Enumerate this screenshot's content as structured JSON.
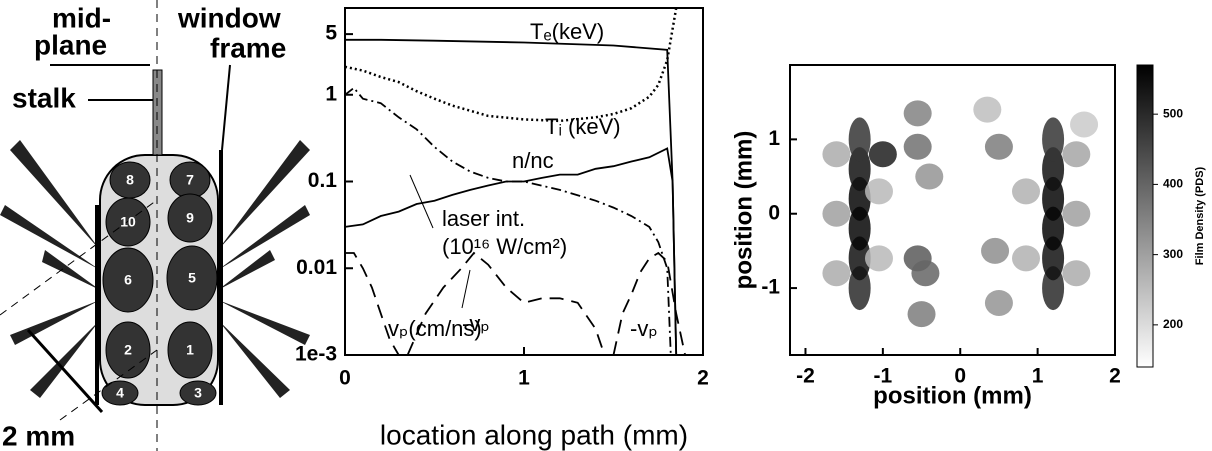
{
  "diagram": {
    "labels": [
      "mid-",
      "plane",
      "window",
      "frame",
      "stalk",
      "2 mm"
    ],
    "beam_numbers": [
      "8",
      "7",
      "10",
      "9",
      "6",
      "5",
      "2",
      "1",
      "4",
      "3"
    ]
  },
  "chart_data": [
    {
      "type": "line",
      "xlabel": "location along path (mm)",
      "xlim": [
        0,
        2
      ],
      "xticks": [
        0,
        1,
        2
      ],
      "ylim": [
        0.001,
        10
      ],
      "log_y": true,
      "yticks": [
        5,
        1,
        0.1,
        0.01,
        {
          "value": 0.001,
          "label": "1e-3"
        }
      ],
      "annotations": [
        "(10¹⁶ W/cm²)"
      ],
      "series": [
        {
          "name": "Tₑ(keV)",
          "color": "#000000",
          "dash": "solid",
          "x": [
            0,
            0.2,
            0.5,
            1.0,
            1.5,
            1.8,
            1.83,
            1.85
          ],
          "values": [
            4.3,
            4.3,
            4.2,
            4.0,
            3.7,
            3.3,
            0.1,
            0.001
          ]
        },
        {
          "name": "Tᵢ (keV)",
          "color": "#000000",
          "dash": "dotted",
          "x": [
            0,
            0.1,
            0.2,
            0.3,
            0.4,
            0.5,
            0.6,
            0.8,
            1.0,
            1.2,
            1.4,
            1.5,
            1.6,
            1.7,
            1.75,
            1.8,
            1.85
          ],
          "values": [
            2.1,
            1.9,
            1.6,
            1.4,
            1.1,
            0.9,
            0.75,
            0.57,
            0.52,
            0.5,
            0.55,
            0.6,
            0.7,
            0.95,
            1.3,
            2.5,
            10
          ]
        },
        {
          "name": "n/nc",
          "color": "#000000",
          "dash": "solid",
          "x": [
            0,
            0.1,
            0.2,
            0.3,
            0.4,
            0.5,
            0.6,
            0.7,
            0.8,
            0.9,
            1.0,
            1.1,
            1.2,
            1.3,
            1.4,
            1.5,
            1.6,
            1.7,
            1.8,
            1.83,
            1.85
          ],
          "values": [
            0.03,
            0.032,
            0.04,
            0.045,
            0.055,
            0.06,
            0.07,
            0.08,
            0.09,
            0.1,
            0.1,
            0.11,
            0.12,
            0.12,
            0.14,
            0.15,
            0.17,
            0.19,
            0.24,
            0.1,
            0.001
          ]
        },
        {
          "name": "laser int.",
          "color": "#000000",
          "dash": "dashdot",
          "x": [
            0,
            0.05,
            0.1,
            0.2,
            0.3,
            0.4,
            0.5,
            0.6,
            0.7,
            0.8,
            0.9,
            1.0,
            1.2,
            1.4,
            1.5,
            1.6,
            1.7,
            1.75,
            1.8,
            1.82
          ],
          "values": [
            1.0,
            1.2,
            0.9,
            0.8,
            0.55,
            0.4,
            0.25,
            0.17,
            0.13,
            0.11,
            0.1,
            0.1,
            0.08,
            0.06,
            0.05,
            0.04,
            0.03,
            0.02,
            0.01,
            0.001
          ]
        },
        {
          "name": "-vₚ",
          "color": "#000000",
          "dash": "dashed",
          "x": [
            0,
            0.05,
            0.1,
            0.15,
            0.2,
            0.25,
            0.3
          ],
          "values": [
            0.015,
            0.015,
            0.01,
            0.006,
            0.003,
            0.0015,
            0.001
          ]
        },
        {
          "name": "vₚ(cm/ns)",
          "color": "#000000",
          "dash": "dashed",
          "x": [
            0.35,
            0.45,
            0.55,
            0.65,
            0.72,
            0.8,
            0.9,
            1.0,
            1.1,
            1.2,
            1.3,
            1.4,
            1.45
          ],
          "values": [
            0.001,
            0.003,
            0.006,
            0.01,
            0.015,
            0.011,
            0.006,
            0.004,
            0.0045,
            0.0045,
            0.004,
            0.002,
            0.001
          ]
        },
        {
          "name": "-vₚ",
          "color": "#000000",
          "dash": "dashed",
          "x": [
            1.5,
            1.55,
            1.6,
            1.65,
            1.7,
            1.75,
            1.8,
            1.85,
            1.9
          ],
          "values": [
            0.001,
            0.003,
            0.005,
            0.009,
            0.013,
            0.015,
            0.012,
            0.003,
            0.001
          ]
        }
      ]
    },
    {
      "type": "heatmap",
      "xlabel": "position (mm)",
      "ylabel": "position (mm)",
      "xlim": [
        -2.2,
        2.0
      ],
      "xticks": [
        -2,
        -1,
        0,
        1,
        2
      ],
      "ylim": [
        -1.9,
        2.0
      ],
      "yticks": [
        -1,
        0,
        1
      ],
      "colorbar_label": "Film Density (PDS)",
      "clim": [
        140,
        570
      ],
      "cticks": [
        200,
        300,
        400,
        500
      ],
      "colormap": [
        "#ffffff",
        "#000000"
      ],
      "x": [
        -1.3,
        -1.3,
        -1.3,
        -1.3,
        -1.3,
        -1.3,
        1.2,
        1.2,
        1.2,
        1.2,
        1.2,
        1.2,
        -1.0,
        -0.55,
        -0.55,
        -0.4,
        -0.55,
        -0.45,
        -0.5,
        0.5,
        0.45,
        0.5,
        0.35,
        -1.6,
        -1.6,
        -1.6,
        -1.05,
        -1.05,
        1.5,
        1.5,
        1.5,
        0.85,
        0.85,
        1.6
      ],
      "y": [
        -1,
        -0.6,
        -0.2,
        0.2,
        0.6,
        1.0,
        -1,
        -0.6,
        -0.2,
        0.2,
        0.6,
        1.0,
        0.8,
        1.35,
        0.9,
        0.5,
        -0.6,
        -0.8,
        -1.35,
        0.9,
        -0.5,
        -1.2,
        1.4,
        0.8,
        0,
        -0.8,
        0.3,
        -0.6,
        0.8,
        0,
        -0.8,
        0.3,
        -0.6,
        1.2
      ],
      "values": [
        500,
        540,
        560,
        560,
        540,
        480,
        500,
        540,
        560,
        560,
        540,
        480,
        520,
        350,
        380,
        320,
        420,
        400,
        360,
        360,
        330,
        320,
        250,
        280,
        300,
        280,
        260,
        260,
        290,
        300,
        280,
        270,
        270,
        230
      ]
    }
  ]
}
